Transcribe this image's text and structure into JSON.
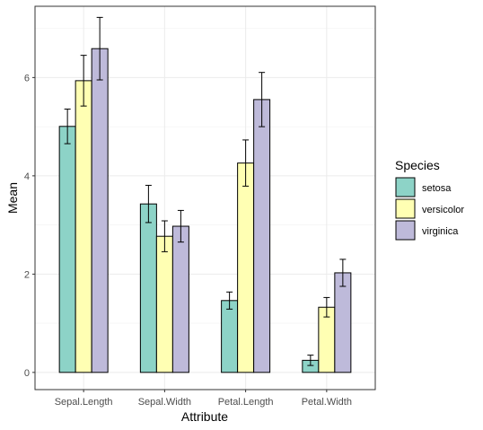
{
  "chart_data": {
    "type": "bar",
    "xlabel": "Attribute",
    "ylabel": "Mean",
    "categories": [
      "Sepal.Length",
      "Sepal.Width",
      "Petal.Length",
      "Petal.Width"
    ],
    "ylim": [
      -0.35,
      7.45
    ],
    "yticks": [
      0,
      2,
      4,
      6
    ],
    "grid": true,
    "legend": {
      "title": "Species",
      "position": "right"
    },
    "series": [
      {
        "name": "setosa",
        "color": "#8DD3C7",
        "values": [
          5.006,
          3.428,
          1.462,
          0.246
        ],
        "err": [
          0.352,
          0.379,
          0.174,
          0.105
        ]
      },
      {
        "name": "versicolor",
        "color": "#FFFFB3",
        "values": [
          5.936,
          2.77,
          4.26,
          1.326
        ],
        "err": [
          0.516,
          0.314,
          0.47,
          0.198
        ]
      },
      {
        "name": "virginica",
        "color": "#BEBADA",
        "values": [
          6.588,
          2.974,
          5.552,
          2.026
        ],
        "err": [
          0.636,
          0.322,
          0.552,
          0.275
        ]
      }
    ]
  }
}
